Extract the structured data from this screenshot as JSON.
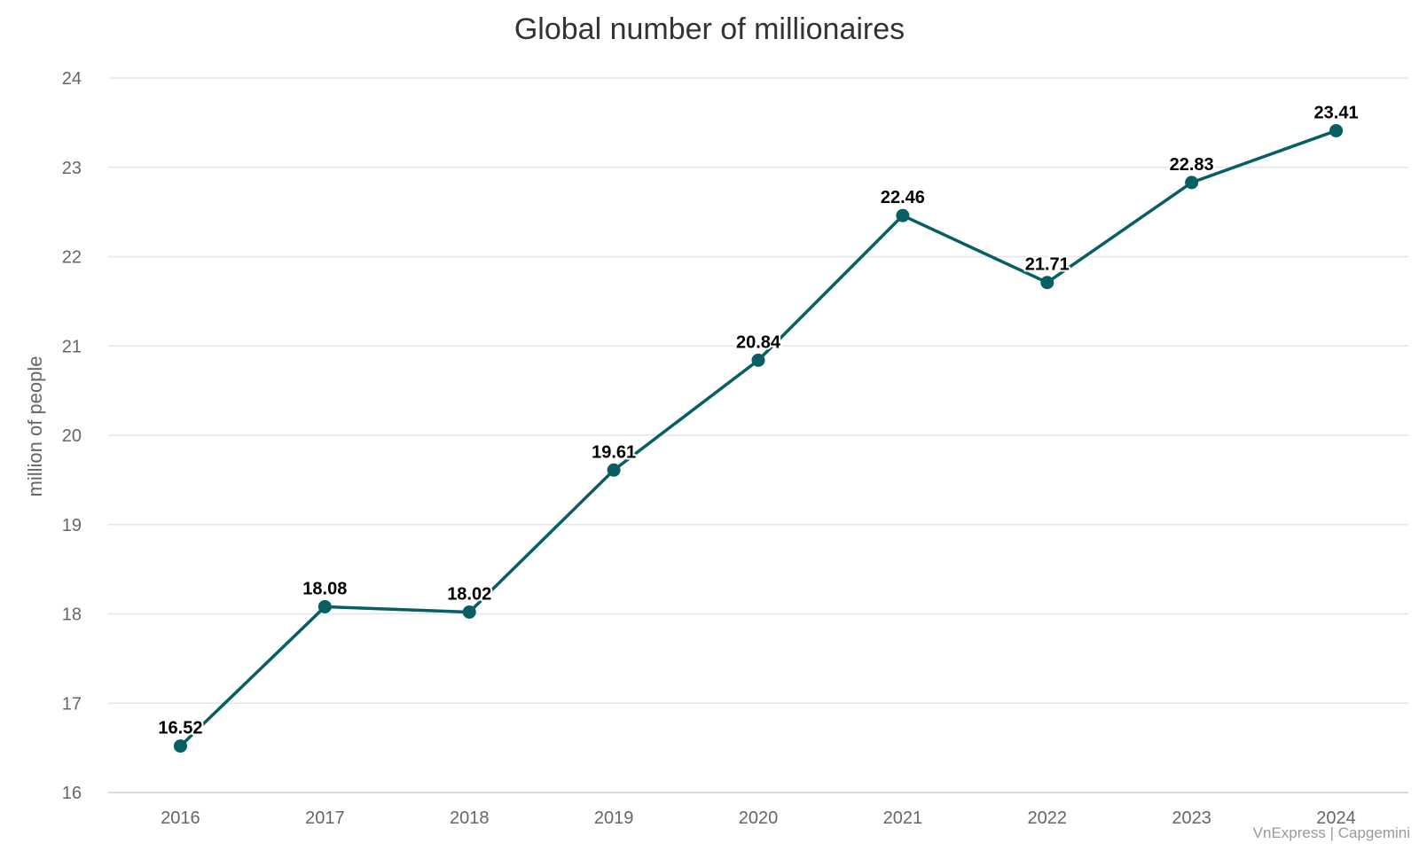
{
  "chart_data": {
    "type": "line",
    "title": "Global number of millionaires",
    "xlabel": "",
    "ylabel": "million of people",
    "categories": [
      "2016",
      "2017",
      "2018",
      "2019",
      "2020",
      "2021",
      "2022",
      "2023",
      "2024"
    ],
    "series": [
      {
        "values": [
          16.52,
          18.08,
          18.02,
          19.61,
          20.84,
          22.46,
          21.71,
          22.83,
          23.41
        ],
        "color": "#075e63"
      }
    ],
    "ylim": [
      16,
      24
    ],
    "yticks": [
      16,
      17,
      18,
      19,
      20,
      21,
      22,
      23,
      24
    ],
    "grid": true,
    "legend": "none",
    "data_labels": true
  },
  "credit": "VnExpress | Capgemini"
}
